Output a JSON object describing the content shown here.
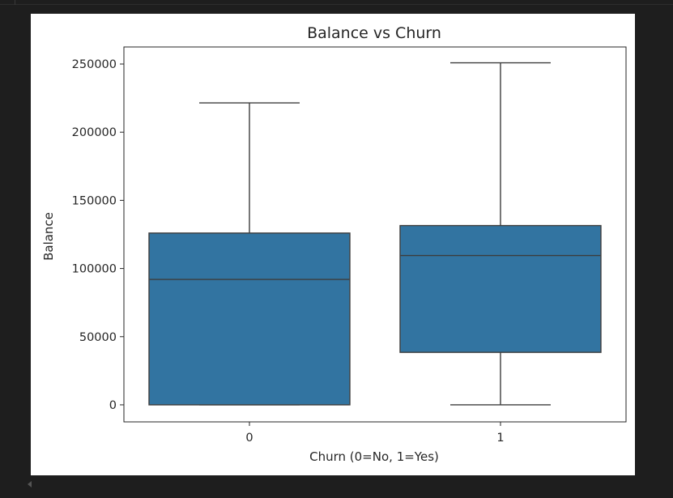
{
  "chart_data": {
    "type": "boxplot",
    "title": "Balance vs Churn",
    "xlabel": "Churn (0=No, 1=Yes)",
    "ylabel": "Balance",
    "ylim": [
      -12500,
      262500
    ],
    "y_ticks": [
      0,
      50000,
      100000,
      150000,
      200000,
      250000
    ],
    "y_tick_labels": [
      "0",
      "50000",
      "100000",
      "150000",
      "200000",
      "250000"
    ],
    "categories": [
      "0",
      "1"
    ],
    "boxes": [
      {
        "category": "0",
        "whisker_low": 0,
        "q1": 0,
        "median": 92000,
        "q3": 126000,
        "whisker_high": 221500
      },
      {
        "category": "1",
        "whisker_low": 0,
        "q1": 38500,
        "median": 109500,
        "q3": 131500,
        "whisker_high": 250900
      }
    ],
    "grid": false,
    "box_color": "#3274a1",
    "line_color": "#3d3d3d"
  }
}
